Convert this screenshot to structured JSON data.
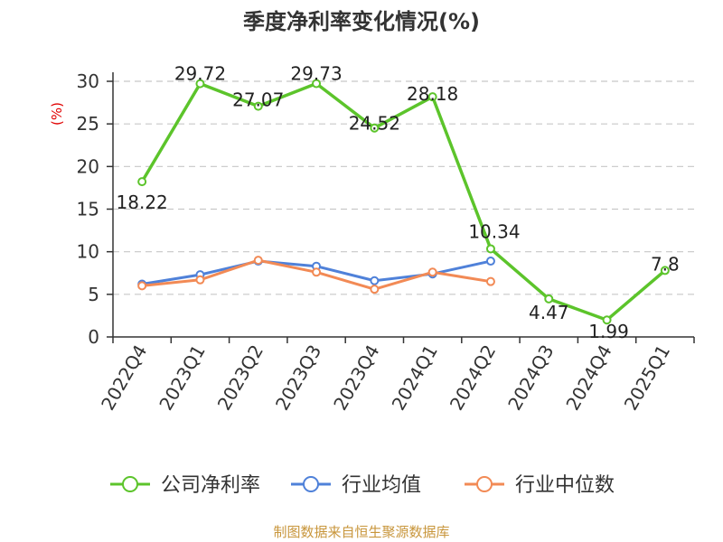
{
  "chart_data": {
    "type": "line",
    "title": "季度净利率变化情况(%)",
    "ylabel": "(%)",
    "ylim": [
      0,
      30
    ],
    "yticks": [
      0,
      5,
      10,
      15,
      20,
      25,
      30
    ],
    "grid": true,
    "legend_position": "bottom",
    "categories": [
      "2022Q4",
      "2023Q1",
      "2023Q2",
      "2023Q3",
      "2023Q4",
      "2024Q1",
      "2024Q2",
      "2024Q3",
      "2024Q4",
      "2025Q1"
    ],
    "series": [
      {
        "name": "公司净利率",
        "color": "#5cc42b",
        "values": [
          18.22,
          29.72,
          27.07,
          29.73,
          24.52,
          28.18,
          10.34,
          4.47,
          1.99,
          7.8
        ],
        "labels": [
          "18.22",
          "29.72",
          "27.07",
          "29.73",
          "24.52",
          "28.18",
          "10.34",
          "4.47",
          "1.99",
          "7.8"
        ]
      },
      {
        "name": "行业均值",
        "color": "#4f81d9",
        "values": [
          6.2,
          7.3,
          8.9,
          8.3,
          6.6,
          7.4,
          8.9,
          null,
          null,
          null
        ]
      },
      {
        "name": "行业中位数",
        "color": "#f28a55",
        "values": [
          6.0,
          6.7,
          9.0,
          7.6,
          5.6,
          7.6,
          6.5,
          null,
          null,
          null
        ]
      }
    ],
    "source": "制图数据来自恒生聚源数据库"
  }
}
